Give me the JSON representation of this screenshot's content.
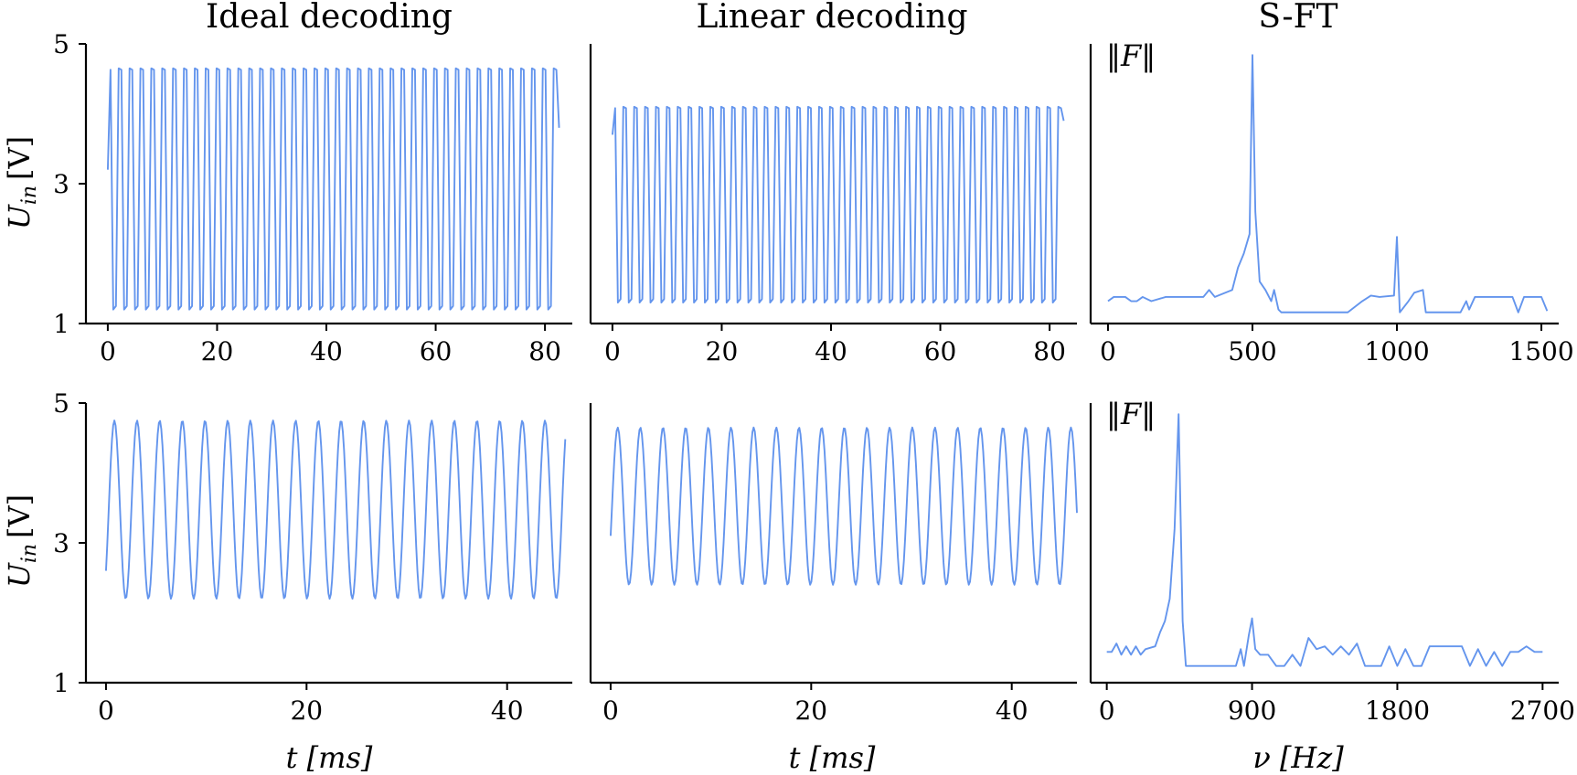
{
  "column_titles": [
    "Ideal decoding",
    "Linear decoding",
    "S-FT"
  ],
  "y_label": "U",
  "y_label_sub": "in",
  "y_label_unit": "[V]",
  "fft_label": "‖F‖",
  "time_label": "t [ms]",
  "freq_label": "ν [Hz]",
  "colors": {
    "series": "#6495ed",
    "axes": "#000000"
  },
  "chart_data": [
    {
      "type": "line",
      "panel": "top-left",
      "row": 0,
      "col": 0,
      "title": "Ideal decoding",
      "xlim": [
        -4,
        85
      ],
      "ylim": [
        1,
        5
      ],
      "xticks": [
        0,
        20,
        40,
        60,
        80
      ],
      "yticks": [
        1,
        3,
        5
      ],
      "ylabel": "U_in [V]",
      "xlabel": "",
      "signal": {
        "kind": "square_wave",
        "t_start": 0,
        "t_end": 83,
        "period": 1.99,
        "samples_per_period": 4,
        "low": 1.2,
        "high": 4.65,
        "start_value": 3.2,
        "end_value": 3.8
      }
    },
    {
      "type": "line",
      "panel": "top-middle",
      "row": 0,
      "col": 1,
      "title": "Linear decoding",
      "xlim": [
        -4,
        85
      ],
      "ylim": [
        1,
        5
      ],
      "xticks": [
        0,
        20,
        40,
        60,
        80
      ],
      "yticks": [],
      "xlabel": "",
      "signal": {
        "kind": "square_wave",
        "t_start": 0,
        "t_end": 83,
        "period": 1.99,
        "samples_per_period": 4,
        "low": 1.3,
        "high": 4.1,
        "start_value": 3.7,
        "end_value": 3.9
      }
    },
    {
      "type": "line",
      "panel": "top-right",
      "row": 0,
      "col": 2,
      "title": "S-FT",
      "xlim": [
        -60,
        1560
      ],
      "ylim": [
        0,
        1
      ],
      "xticks": [
        0,
        500,
        1000,
        1500
      ],
      "yticks": [],
      "xlabel": "",
      "x": [
        0,
        20,
        60,
        80,
        100,
        120,
        150,
        200,
        330,
        350,
        370,
        430,
        450,
        470,
        490,
        500,
        510,
        525,
        545,
        565,
        575,
        590,
        600,
        830,
        880,
        910,
        940,
        990,
        1000,
        1010,
        1040,
        1060,
        1090,
        1100,
        1220,
        1240,
        1250,
        1270,
        1300,
        1400,
        1420,
        1440,
        1500,
        1520
      ],
      "values": [
        0.08,
        0.095,
        0.095,
        0.08,
        0.08,
        0.095,
        0.08,
        0.095,
        0.095,
        0.12,
        0.095,
        0.12,
        0.2,
        0.25,
        0.32,
        0.96,
        0.4,
        0.15,
        0.12,
        0.08,
        0.12,
        0.05,
        0.04,
        0.04,
        0.08,
        0.1,
        0.095,
        0.1,
        0.31,
        0.04,
        0.08,
        0.11,
        0.12,
        0.04,
        0.04,
        0.08,
        0.05,
        0.095,
        0.095,
        0.095,
        0.04,
        0.095,
        0.095,
        0.045
      ]
    },
    {
      "type": "line",
      "panel": "bottom-left",
      "row": 1,
      "col": 0,
      "xlim": [
        -2,
        46.5
      ],
      "ylim": [
        1,
        5
      ],
      "xticks": [
        0,
        20,
        40
      ],
      "yticks": [
        1,
        3,
        5
      ],
      "ylabel": "U_in [V]",
      "xlabel": "t [ms]",
      "signal": {
        "kind": "sine_wave",
        "t_start": 0,
        "t_end": 45.8,
        "period": 2.26,
        "low": 2.2,
        "high": 4.75,
        "start_value": 2.6,
        "end_value": 3.0
      }
    },
    {
      "type": "line",
      "panel": "bottom-middle",
      "row": 1,
      "col": 1,
      "xlim": [
        -2,
        46.5
      ],
      "ylim": [
        1,
        5
      ],
      "xticks": [
        0,
        20,
        40
      ],
      "yticks": [],
      "xlabel": "t [ms]",
      "signal": {
        "kind": "sine_wave",
        "t_start": 0,
        "t_end": 46.5,
        "period": 2.26,
        "low": 2.4,
        "high": 4.65,
        "start_value": 3.1,
        "end_value": 3.5
      }
    },
    {
      "type": "line",
      "panel": "bottom-right",
      "row": 1,
      "col": 2,
      "xlim": [
        -100,
        2800
      ],
      "ylim": [
        0,
        1
      ],
      "xticks": [
        0,
        900,
        1800,
        2700
      ],
      "yticks": [],
      "xlabel": "ν [Hz]",
      "x": [
        0,
        30,
        60,
        90,
        120,
        150,
        180,
        210,
        240,
        300,
        330,
        360,
        390,
        420,
        445,
        470,
        490,
        520,
        800,
        830,
        850,
        880,
        900,
        920,
        950,
        1000,
        1050,
        1100,
        1150,
        1200,
        1250,
        1300,
        1350,
        1400,
        1450,
        1500,
        1550,
        1600,
        1650,
        1700,
        1750,
        1800,
        1850,
        1900,
        1950,
        2000,
        2050,
        2100,
        2150,
        2200,
        2250,
        2300,
        2350,
        2400,
        2450,
        2500,
        2550,
        2600,
        2650,
        2700
      ],
      "values": [
        0.11,
        0.11,
        0.14,
        0.1,
        0.13,
        0.1,
        0.13,
        0.1,
        0.12,
        0.13,
        0.18,
        0.22,
        0.3,
        0.55,
        0.96,
        0.22,
        0.06,
        0.06,
        0.06,
        0.12,
        0.06,
        0.17,
        0.23,
        0.12,
        0.1,
        0.1,
        0.06,
        0.06,
        0.1,
        0.06,
        0.16,
        0.12,
        0.13,
        0.1,
        0.13,
        0.1,
        0.14,
        0.06,
        0.06,
        0.06,
        0.13,
        0.06,
        0.12,
        0.06,
        0.06,
        0.13,
        0.13,
        0.13,
        0.13,
        0.13,
        0.06,
        0.12,
        0.06,
        0.11,
        0.06,
        0.11,
        0.11,
        0.13,
        0.11,
        0.11
      ]
    }
  ]
}
